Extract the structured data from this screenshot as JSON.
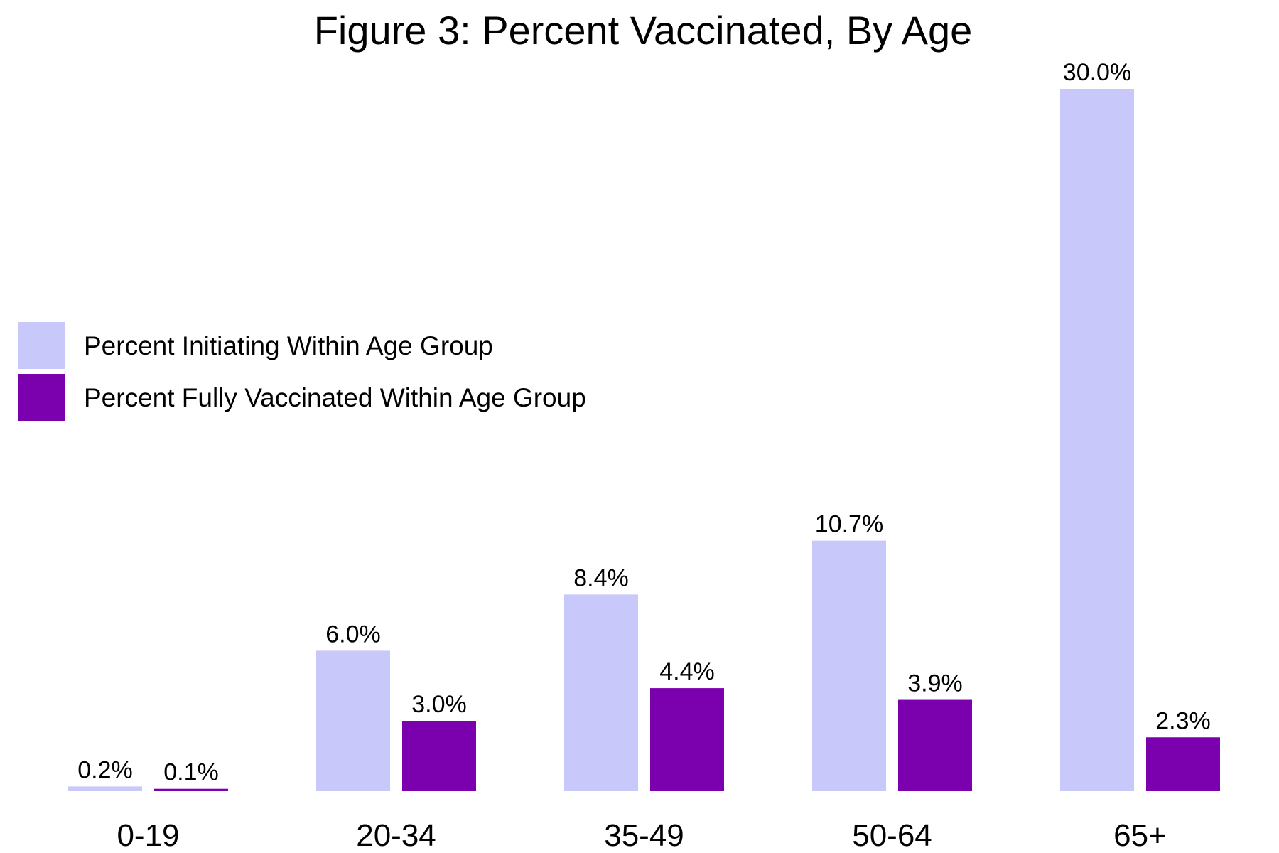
{
  "chart_data": {
    "type": "bar",
    "title": "Figure 3: Percent Vaccinated, By Age",
    "xlabel": "",
    "ylabel": "",
    "ylim": [
      0,
      30
    ],
    "grid": false,
    "legend_position": "left",
    "categories": [
      "0-19",
      "20-34",
      "35-49",
      "50-64",
      "65+"
    ],
    "series": [
      {
        "name": "Percent Initiating Within Age Group",
        "color": "#c8c8fa",
        "values": [
          0.2,
          6.0,
          8.4,
          10.7,
          30.0
        ],
        "labels": [
          "0.2%",
          "6.0%",
          "8.4%",
          "10.7%",
          "30.0%"
        ]
      },
      {
        "name": "Percent Fully Vaccinated Within Age Group",
        "color": "#7b00ae",
        "values": [
          0.1,
          3.0,
          4.4,
          3.9,
          2.3
        ],
        "labels": [
          "0.1%",
          "3.0%",
          "4.4%",
          "3.9%",
          "2.3%"
        ]
      }
    ]
  }
}
